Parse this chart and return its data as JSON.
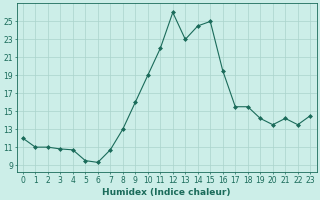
{
  "x": [
    0,
    1,
    2,
    3,
    4,
    5,
    6,
    7,
    8,
    9,
    10,
    11,
    12,
    13,
    14,
    15,
    16,
    17,
    18,
    19,
    20,
    21,
    22,
    23
  ],
  "y": [
    12.0,
    11.0,
    11.0,
    10.8,
    10.7,
    9.5,
    9.3,
    10.7,
    13.0,
    16.0,
    19.0,
    22.0,
    26.0,
    23.0,
    24.5,
    25.0,
    19.5,
    15.5,
    15.5,
    14.2,
    13.5,
    14.2,
    13.5,
    14.5
  ],
  "line_color": "#1a6b5a",
  "marker": "D",
  "marker_size": 2.0,
  "bg_color": "#cceee8",
  "grid_color": "#aad4cc",
  "xlabel": "Humidex (Indice chaleur)",
  "ylabel_ticks": [
    9,
    11,
    13,
    15,
    17,
    19,
    21,
    23,
    25
  ],
  "xlim": [
    -0.5,
    23.5
  ],
  "ylim": [
    8.2,
    27.0
  ],
  "xticks": [
    0,
    1,
    2,
    3,
    4,
    5,
    6,
    7,
    8,
    9,
    10,
    11,
    12,
    13,
    14,
    15,
    16,
    17,
    18,
    19,
    20,
    21,
    22,
    23
  ],
  "font_color": "#1a6b5a",
  "tick_fontsize": 5.5,
  "xlabel_fontsize": 6.5
}
